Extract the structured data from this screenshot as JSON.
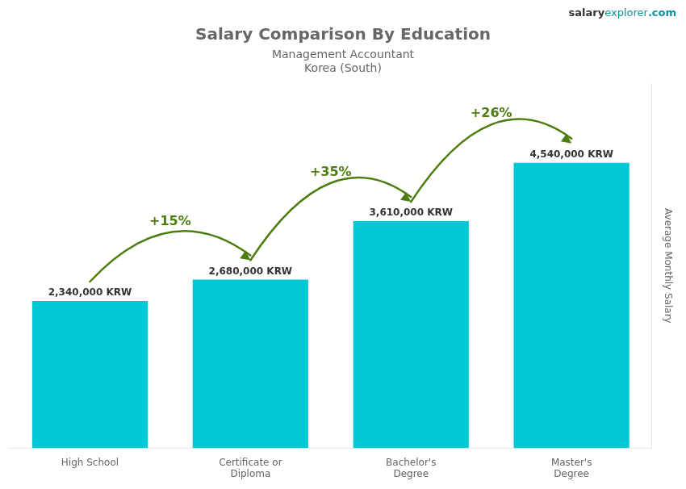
{
  "chart_data": {
    "type": "bar",
    "title": "Salary Comparison By Education",
    "subtitle": "Management Accountant",
    "country": "Korea (South)",
    "source": [
      "salary",
      "explorer",
      ".com"
    ],
    "ylabel": "Average Monthly Salary",
    "categories": [
      "High School",
      "Certificate or\nDiploma",
      "Bachelor's\nDegree",
      "Master's\nDegree"
    ],
    "values": [
      2340000,
      2680000,
      3610000,
      4540000
    ],
    "value_labels": [
      "2,340,000 KRW",
      "2,680,000 KRW",
      "3,610,000 KRW",
      "4,540,000 KRW"
    ],
    "data_labels": true,
    "annotations": [
      {
        "from": 0,
        "to": 1,
        "label": "+15%"
      },
      {
        "from": 1,
        "to": 2,
        "label": "+35%"
      },
      {
        "from": 2,
        "to": 3,
        "label": "+26%"
      }
    ],
    "color": "#00c8d4",
    "ylim": [
      0,
      5800000
    ],
    "tick_labels": "x",
    "grid": false
  }
}
